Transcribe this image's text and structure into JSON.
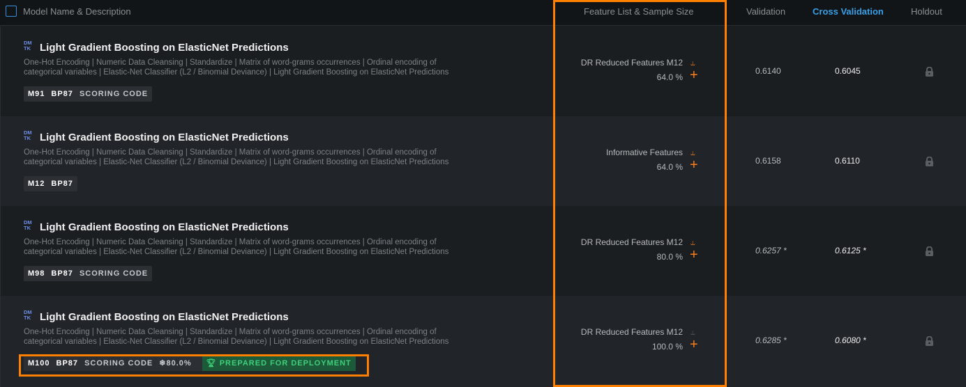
{
  "header": {
    "select_all": "",
    "model_name": "Model Name & Description",
    "feature_list": "Feature List & Sample Size",
    "validation": "Validation",
    "cross_validation": "Cross Validation",
    "holdout": "Holdout"
  },
  "colors": {
    "accent": "#ff8000",
    "link": "#3a9fe6",
    "deploy": "#3fd07a"
  },
  "rows": [
    {
      "logo": "DMTK",
      "title": "Light Gradient Boosting on ElasticNet Predictions",
      "description": "One-Hot Encoding | Numeric Data Cleansing | Standardize | Matrix of word-grams occurrences | Ordinal encoding of categorical variables | Elastic-Net Classifier (L2 / Binomial Deviance) | Light Gradient Boosting on ElasticNet Predictions",
      "model_id": "M91",
      "blueprint": "BP87",
      "scoring": "SCORING CODE",
      "feature_list": "DR Reduced Features M12",
      "sample": "64.0 %",
      "validation": "0.6140",
      "cross_validation": "0.6045",
      "holdout_icon": "lock-icon"
    },
    {
      "logo": "DMTK",
      "title": "Light Gradient Boosting on ElasticNet Predictions",
      "description": "One-Hot Encoding | Numeric Data Cleansing | Standardize | Matrix of word-grams occurrences | Ordinal encoding of categorical variables | Elastic-Net Classifier (L2 / Binomial Deviance) | Light Gradient Boosting on ElasticNet Predictions",
      "model_id": "M12",
      "blueprint": "BP87",
      "feature_list": "Informative Features",
      "sample": "64.0 %",
      "validation": "0.6158",
      "cross_validation": "0.6110",
      "holdout_icon": "lock-icon"
    },
    {
      "logo": "DMTK",
      "title": "Light Gradient Boosting on ElasticNet Predictions",
      "description": "One-Hot Encoding | Numeric Data Cleansing | Standardize | Matrix of word-grams occurrences | Ordinal encoding of categorical variables | Elastic-Net Classifier (L2 / Binomial Deviance) | Light Gradient Boosting on ElasticNet Predictions",
      "model_id": "M98",
      "blueprint": "BP87",
      "scoring": "SCORING CODE",
      "feature_list": "DR Reduced Features M12",
      "sample": "80.0 %",
      "validation": "0.6257 *",
      "cross_validation": "0.6125 *",
      "holdout_icon": "lock-icon"
    },
    {
      "logo": "DMTK",
      "title": "Light Gradient Boosting on ElasticNet Predictions",
      "description": "One-Hot Encoding | Numeric Data Cleansing | Standardize | Matrix of word-grams occurrences | Ordinal encoding of categorical variables | Elastic-Net Classifier (L2 / Binomial Deviance) | Light Gradient Boosting on ElasticNet Predictions",
      "model_id": "M100",
      "blueprint": "BP87",
      "scoring": "SCORING CODE",
      "frozen": "80.0%",
      "deploy": "PREPARED FOR DEPLOYMENT",
      "feature_list": "DR Reduced Features M12",
      "sample": "100.0 %",
      "validation": "0.6285 *",
      "cross_validation": "0.6080 *",
      "holdout_icon": "lock-icon"
    }
  ]
}
